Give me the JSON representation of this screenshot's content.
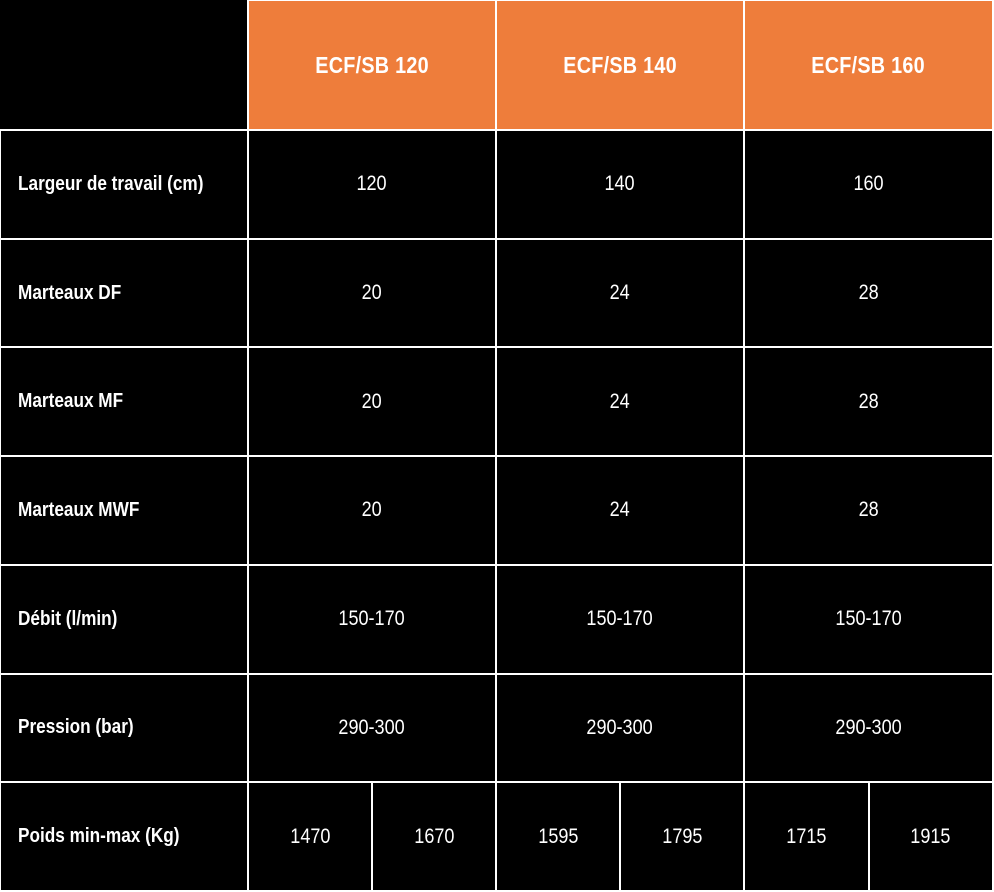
{
  "chart_data": {
    "type": "table",
    "columns": [
      "ECF/SB 120",
      "ECF/SB 140",
      "ECF/SB 160"
    ],
    "rows": [
      {
        "label": "Largeur de travail (cm)",
        "values": [
          "120",
          "140",
          "160"
        ]
      },
      {
        "label": "Marteaux DF",
        "values": [
          "20",
          "24",
          "28"
        ]
      },
      {
        "label": "Marteaux MF",
        "values": [
          "20",
          "24",
          "28"
        ]
      },
      {
        "label": "Marteaux MWF",
        "values": [
          "20",
          "24",
          "28"
        ]
      },
      {
        "label": "Débit (l/min)",
        "values": [
          "150-170",
          "150-170",
          "150-170"
        ]
      },
      {
        "label": "Pression (bar)",
        "values": [
          "290-300",
          "290-300",
          "290-300"
        ]
      },
      {
        "label": "Poids min-max (Kg)",
        "split_values": [
          [
            "1470",
            "1670"
          ],
          [
            "1595",
            "1795"
          ],
          [
            "1715",
            "1915"
          ]
        ]
      }
    ],
    "layout_hints": {
      "header_position": "top",
      "first_column": "row labels",
      "last_row_cells": "split into min/max halves",
      "grid": "white lines on black"
    },
    "style": {
      "header_bg": "#EE7D3B",
      "body_bg": "#000000",
      "text_color": "#FFFFFF",
      "grid_color": "#FFFFFF"
    }
  }
}
